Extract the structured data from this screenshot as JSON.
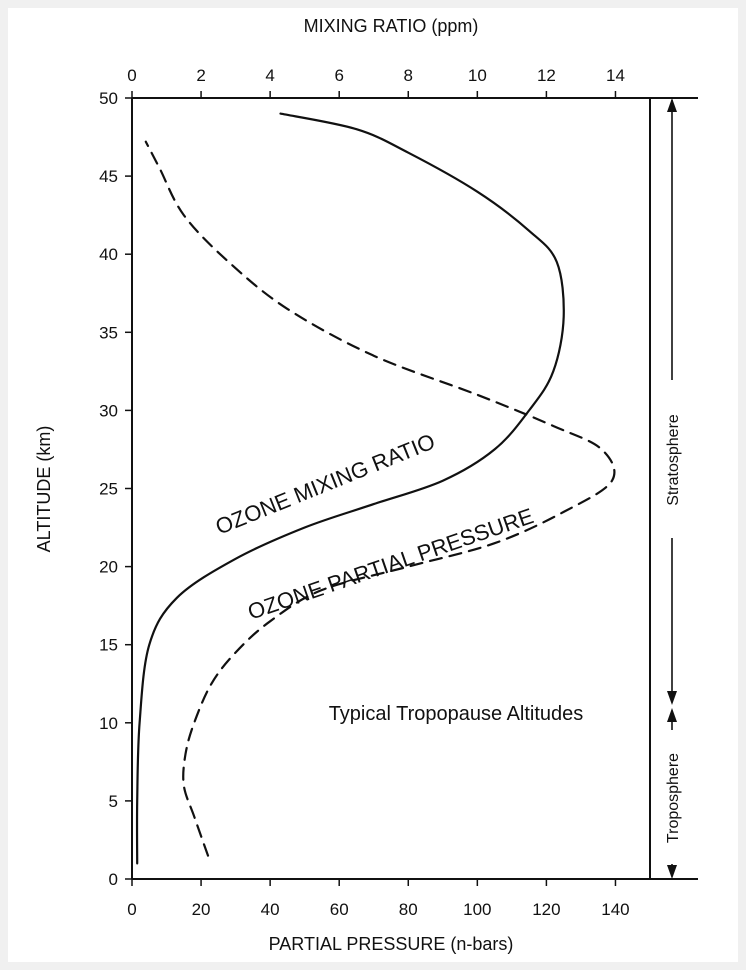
{
  "chart_data": {
    "type": "line",
    "title": "",
    "top_axis": {
      "label": "MIXING RATIO (ppm)",
      "ticks": [
        0,
        2,
        4,
        6,
        8,
        10,
        12,
        14
      ],
      "range": [
        0,
        15
      ]
    },
    "bottom_axis": {
      "label": "PARTIAL PRESSURE (n-bars)",
      "ticks": [
        0,
        20,
        40,
        60,
        80,
        100,
        120,
        140
      ],
      "range": [
        0,
        150
      ]
    },
    "y_axis": {
      "label": "ALTITUDE (km)",
      "ticks": [
        0,
        5,
        10,
        15,
        20,
        25,
        30,
        35,
        40,
        45,
        50
      ],
      "range": [
        0,
        50
      ]
    },
    "grid": false,
    "legend": "none",
    "series": [
      {
        "axis": "top",
        "style": "solid",
        "points": [
          [
            0.15,
            1
          ],
          [
            0.15,
            5
          ],
          [
            0.22,
            10
          ],
          [
            0.5,
            15
          ],
          [
            1.3,
            18
          ],
          [
            3.0,
            20.5
          ],
          [
            5.0,
            22.5
          ],
          [
            7.0,
            24.0
          ],
          [
            9.0,
            25.5
          ],
          [
            10.5,
            27.5
          ],
          [
            11.5,
            30
          ],
          [
            12.2,
            32.5
          ],
          [
            12.5,
            36
          ],
          [
            12.3,
            39.5
          ],
          [
            11.5,
            41.5
          ],
          [
            10.0,
            44
          ],
          [
            8.0,
            46.5
          ],
          [
            6.5,
            48
          ],
          [
            4.3,
            49
          ]
        ]
      },
      {
        "axis": "bottom",
        "style": "dashed",
        "points": [
          [
            22,
            1.5
          ],
          [
            18,
            4
          ],
          [
            15,
            6
          ],
          [
            15.5,
            8
          ],
          [
            18,
            10
          ],
          [
            23,
            12.5
          ],
          [
            30,
            14.5
          ],
          [
            40,
            16.5
          ],
          [
            55,
            18.5
          ],
          [
            80,
            20
          ],
          [
            105,
            21.5
          ],
          [
            125,
            23.5
          ],
          [
            139,
            25.5
          ],
          [
            136,
            27.5
          ],
          [
            122,
            29
          ],
          [
            100,
            31
          ],
          [
            70,
            33.5
          ],
          [
            45,
            36.5
          ],
          [
            28,
            39.5
          ],
          [
            15,
            42.5
          ],
          [
            8,
            45.5
          ],
          [
            4,
            47.2
          ]
        ]
      }
    ],
    "annotations": {
      "mixing_ratio_label": "OZONE MIXING RATIO",
      "partial_pressure_label": "OZONE PARTIAL PRESSURE",
      "tropopause_label": "Typical Tropopause Altitudes"
    },
    "regions": {
      "stratosphere": "Stratosphere",
      "troposphere": "Troposphere"
    }
  }
}
